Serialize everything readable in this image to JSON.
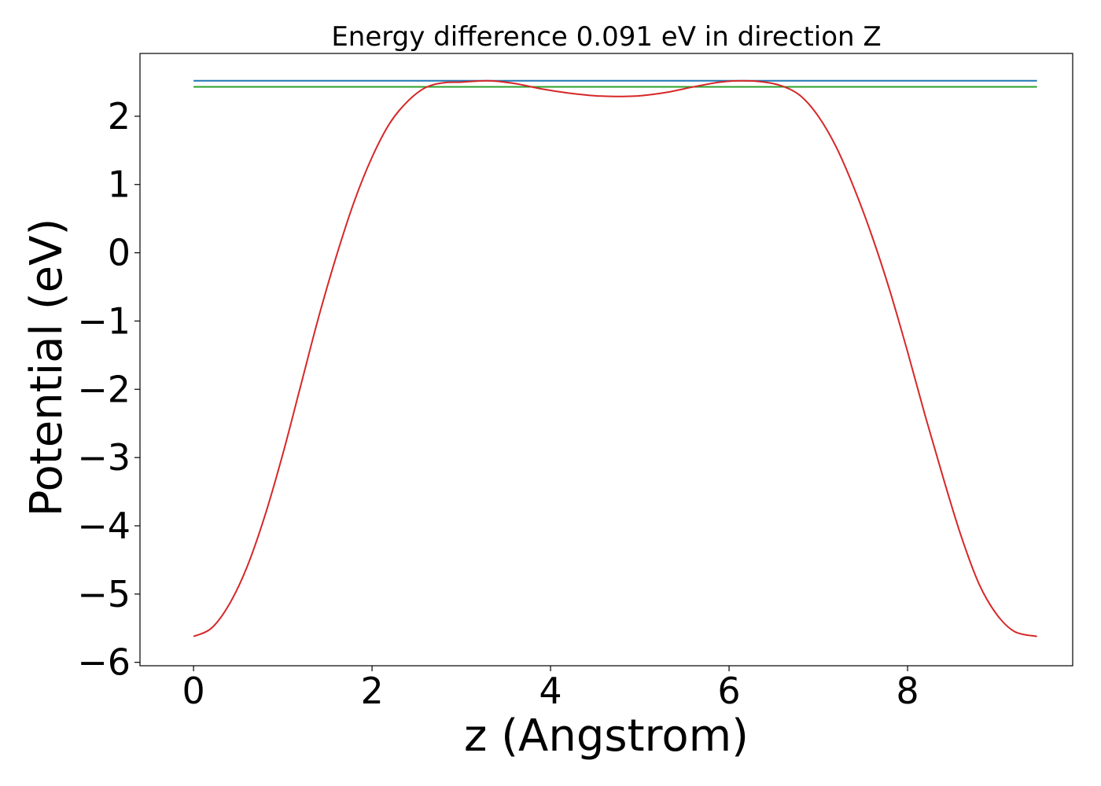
{
  "chart_data": {
    "type": "line",
    "title": "Energy difference 0.091 eV in direction Z",
    "xlabel": "z (Angstrom)",
    "ylabel": "Potential (eV)",
    "xlim": [
      -0.6,
      9.85
    ],
    "ylim": [
      -6.05,
      2.92
    ],
    "xticks": [
      0,
      2,
      4,
      6,
      8
    ],
    "yticks": [
      -6,
      -5,
      -4,
      -3,
      -2,
      -1,
      0,
      1,
      2
    ],
    "ytick_labels": [
      "−6",
      "−5",
      "−4",
      "−3",
      "−2",
      "−1",
      "0",
      "1",
      "2"
    ],
    "grid": false,
    "legend": "none",
    "series": [
      {
        "color": "#1f77b4",
        "x": [
          0,
          9.45
        ],
        "y": [
          2.52,
          2.52
        ]
      },
      {
        "color": "#2ca02c",
        "x": [
          0,
          9.45
        ],
        "y": [
          2.43,
          2.43
        ]
      },
      {
        "color": "#d62728",
        "x": [
          0,
          0.2,
          0.4,
          0.6,
          0.8,
          1.0,
          1.2,
          1.4,
          1.6,
          1.8,
          2.0,
          2.2,
          2.4,
          2.6,
          2.8,
          3.0,
          3.3,
          3.6,
          3.9,
          4.2,
          4.5,
          4.73,
          5.0,
          5.3,
          5.6,
          5.9,
          6.15,
          6.4,
          6.6,
          6.8,
          7.0,
          7.2,
          7.4,
          7.6,
          7.8,
          8.0,
          8.2,
          8.4,
          8.6,
          8.8,
          9.0,
          9.2,
          9.45
        ],
        "y": [
          -5.62,
          -5.5,
          -5.15,
          -4.6,
          -3.85,
          -2.95,
          -1.95,
          -0.95,
          -0.05,
          0.75,
          1.4,
          1.9,
          2.22,
          2.42,
          2.49,
          2.5,
          2.52,
          2.48,
          2.4,
          2.34,
          2.3,
          2.29,
          2.3,
          2.35,
          2.43,
          2.5,
          2.52,
          2.5,
          2.44,
          2.3,
          2.0,
          1.55,
          0.95,
          0.25,
          -0.55,
          -1.45,
          -2.4,
          -3.3,
          -4.15,
          -4.85,
          -5.3,
          -5.55,
          -5.62
        ]
      }
    ]
  }
}
